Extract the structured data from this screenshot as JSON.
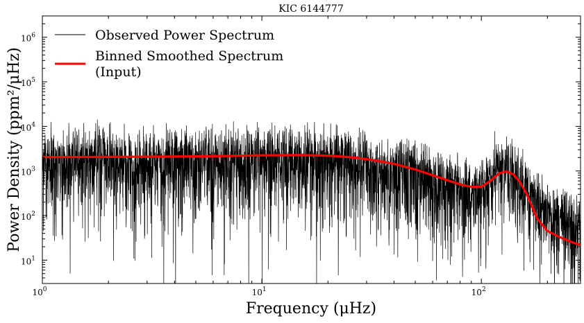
{
  "chart_data": {
    "type": "line",
    "title": "KIC 6144777",
    "xlabel": "Frequency (μHz)",
    "ylabel": "Power Density (ppm²/μHz)",
    "x_scale": "log",
    "y_scale": "log",
    "xlim": [
      1,
      283
    ],
    "ylim": [
      3,
      3000000
    ],
    "grid": false,
    "legend_position": "top-left",
    "x_ticks": [
      {
        "base": "10",
        "exp": "0"
      },
      {
        "base": "10",
        "exp": "1"
      },
      {
        "base": "10",
        "exp": "2"
      }
    ],
    "y_ticks": [
      {
        "base": "10",
        "exp": "1"
      },
      {
        "base": "10",
        "exp": "2"
      },
      {
        "base": "10",
        "exp": "3"
      },
      {
        "base": "10",
        "exp": "4"
      },
      {
        "base": "10",
        "exp": "5"
      },
      {
        "base": "10",
        "exp": "6"
      }
    ],
    "series": [
      {
        "name": "Observed Power Spectrum",
        "color": "#000000",
        "style": "thin-line",
        "note_type": "noisy-spectrum",
        "envelope": {
          "frequency": [
            1,
            2,
            5,
            10,
            15,
            20,
            30,
            50,
            80,
            100,
            110,
            120,
            130,
            140,
            150,
            170,
            200,
            250,
            283
          ],
          "median_power": [
            1500,
            1500,
            1500,
            1600,
            1600,
            1500,
            1200,
            700,
            350,
            320,
            500,
            800,
            900,
            700,
            450,
            200,
            100,
            60,
            50
          ],
          "max_power": [
            20000,
            20000,
            15000,
            14000,
            14000,
            12000,
            9000,
            6000,
            4000,
            5000,
            20000,
            55000,
            60000,
            45000,
            15000,
            3000,
            1500,
            900,
            800
          ]
        }
      },
      {
        "name": "Binned Smoothed Spectrum\n(Input)",
        "color": "#ff0000",
        "style": "thick-line",
        "x": [
          1,
          2,
          3,
          5,
          7,
          10,
          15,
          20,
          25,
          30,
          40,
          50,
          60,
          70,
          80,
          90,
          100,
          110,
          120,
          130,
          140,
          150,
          160,
          170,
          180,
          200,
          230,
          260,
          283
        ],
        "y": [
          2050,
          2070,
          2090,
          2130,
          2170,
          2240,
          2280,
          2200,
          2050,
          1850,
          1450,
          1080,
          800,
          620,
          500,
          440,
          440,
          600,
          880,
          980,
          840,
          560,
          320,
          160,
          85,
          45,
          32,
          25,
          22
        ]
      }
    ]
  }
}
